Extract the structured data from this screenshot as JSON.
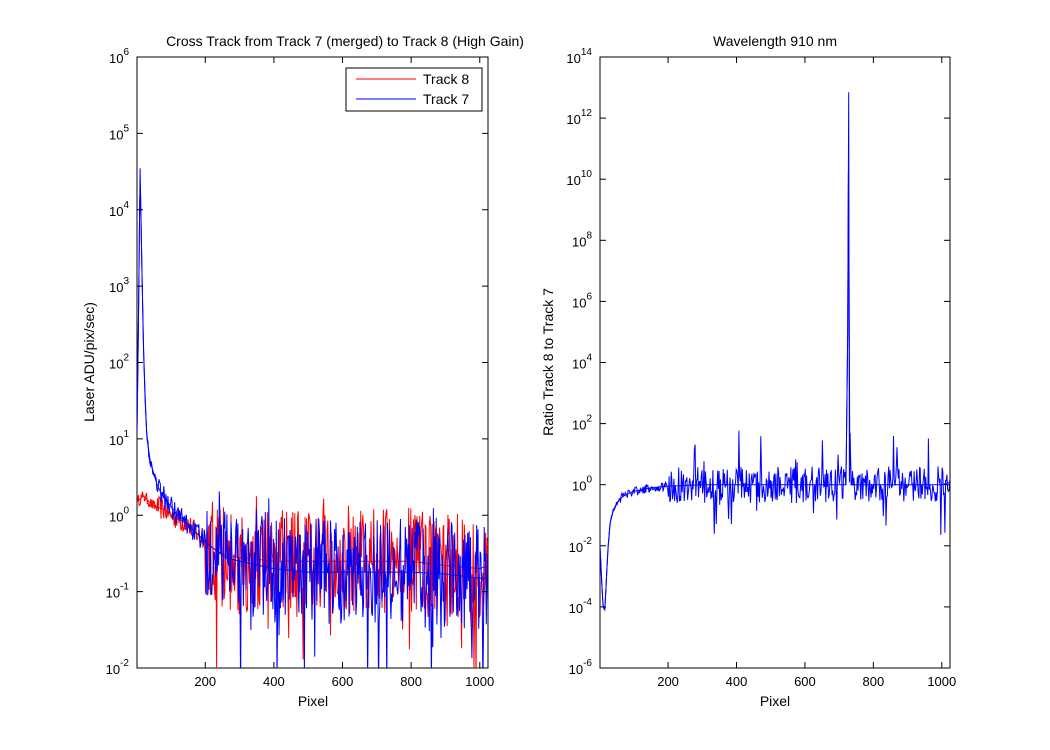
{
  "colors": {
    "track8": "#ff0000",
    "track7": "#0000ff",
    "axis": "#000000",
    "background": "#ffffff"
  },
  "chart_data": [
    {
      "type": "line",
      "title": "Cross Track from Track 7 (merged) to Track 8 (High Gain)",
      "xlabel": "Pixel",
      "ylabel": "Laser ADU/pix/sec)",
      "yscale": "log",
      "xlim": [
        1,
        1024
      ],
      "ylim": [
        0.01,
        1000000
      ],
      "xticks": [
        200,
        400,
        600,
        800,
        1000
      ],
      "yticks": [
        {
          "base": "10",
          "exp": "-2"
        },
        {
          "base": "10",
          "exp": "-1"
        },
        {
          "base": "10",
          "exp": "0"
        },
        {
          "base": "10",
          "exp": "1"
        },
        {
          "base": "10",
          "exp": "2"
        },
        {
          "base": "10",
          "exp": "3"
        },
        {
          "base": "10",
          "exp": "4"
        },
        {
          "base": "10",
          "exp": "5"
        },
        {
          "base": "10",
          "exp": "6"
        }
      ],
      "grid": false,
      "legend_position": "top-right",
      "series": [
        {
          "name": "Track 8",
          "color": "#ff0000",
          "x": [
            1,
            20,
            50,
            80,
            100,
            120,
            150,
            180,
            200,
            230,
            260,
            300,
            400,
            500,
            600,
            700,
            800,
            900,
            1000,
            1024
          ],
          "y": [
            1.5,
            1.8,
            1.3,
            1.2,
            1.0,
            0.9,
            0.75,
            0.55,
            0.45,
            0.35,
            0.3,
            0.28,
            0.25,
            0.25,
            0.25,
            0.25,
            0.25,
            0.22,
            0.2,
            0.22
          ]
        },
        {
          "name": "Track 7",
          "color": "#0000ff",
          "x": [
            1,
            5,
            10,
            15,
            20,
            25,
            30,
            40,
            50,
            60,
            70,
            80,
            100,
            120,
            150,
            180,
            200,
            230,
            260,
            300,
            400,
            500,
            600,
            700,
            800,
            900,
            1000,
            1024
          ],
          "y": [
            12,
            300,
            35000,
            2000,
            150,
            30,
            10,
            5,
            3.5,
            2.5,
            2.0,
            1.7,
            1.3,
            1.0,
            0.75,
            0.55,
            0.45,
            0.35,
            0.28,
            0.25,
            0.2,
            0.18,
            0.18,
            0.18,
            0.18,
            0.17,
            0.15,
            0.15
          ]
        }
      ]
    },
    {
      "type": "line",
      "title": "Wavelength 910 nm",
      "xlabel": "Pixel",
      "ylabel": "Ratio Track 8 to Track 7",
      "yscale": "log",
      "xlim": [
        1,
        1024
      ],
      "ylim": [
        1e-06,
        100000000000000.0
      ],
      "xticks": [
        200,
        400,
        600,
        800,
        1000
      ],
      "yticks": [
        {
          "base": "10",
          "exp": "-6"
        },
        {
          "base": "10",
          "exp": "-4"
        },
        {
          "base": "10",
          "exp": "-2"
        },
        {
          "base": "10",
          "exp": "0"
        },
        {
          "base": "10",
          "exp": "2"
        },
        {
          "base": "10",
          "exp": "4"
        },
        {
          "base": "10",
          "exp": "6"
        },
        {
          "base": "10",
          "exp": "8"
        },
        {
          "base": "10",
          "exp": "10"
        },
        {
          "base": "10",
          "exp": "12"
        },
        {
          "base": "10",
          "exp": "14"
        }
      ],
      "grid": false,
      "series": [
        {
          "color": "#0000ff",
          "x": [
            1,
            5,
            10,
            15,
            20,
            25,
            30,
            40,
            50,
            60,
            80,
            100,
            150,
            200,
            300,
            400,
            500,
            600,
            700,
            720,
            725,
            728,
            730,
            732,
            735,
            740,
            760,
            800,
            900,
            1000,
            1024
          ],
          "y": [
            0.01,
            0.001,
            0.0001,
            8e-05,
            0.001,
            0.01,
            0.05,
            0.15,
            0.25,
            0.35,
            0.5,
            0.6,
            0.8,
            0.9,
            1.0,
            1.0,
            1.0,
            1.0,
            1.0,
            1.0,
            100000,
            7000000000000.0,
            1.2,
            50,
            1.0,
            1.0,
            1.0,
            1.0,
            1.0,
            1.0,
            1.2
          ]
        }
      ]
    }
  ]
}
